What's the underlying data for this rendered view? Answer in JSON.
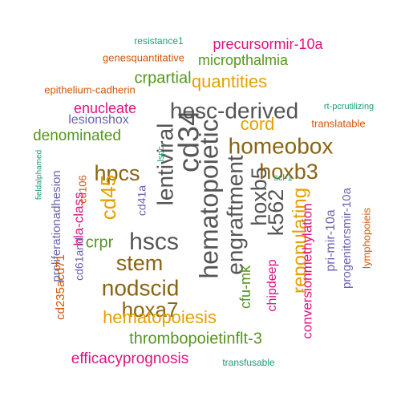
{
  "palette": {
    "gray": "#555555",
    "olive": "#8a6414",
    "orange": "#e6a000",
    "green": "#55961e",
    "pink": "#e0137f",
    "purple": "#6a63b0",
    "rust": "#d0560a",
    "teal": "#1a9e77"
  },
  "words": [
    {
      "id": "hematopoietic",
      "text": "hematopoietic",
      "color": "gray"
    },
    {
      "id": "cd34",
      "text": "cd34",
      "color": "gray"
    },
    {
      "id": "hesc-derived",
      "text": "hesc-derived",
      "color": "gray"
    },
    {
      "id": "lentiviral",
      "text": "lentiviral",
      "color": "gray"
    },
    {
      "id": "engraftment",
      "text": "engraftment",
      "color": "gray"
    },
    {
      "id": "hscs",
      "text": "hscs",
      "color": "gray"
    },
    {
      "id": "hoxb5",
      "text": "hoxb5",
      "color": "gray"
    },
    {
      "id": "k562",
      "text": "k562",
      "color": "gray"
    },
    {
      "id": "homeobox",
      "text": "homeobox",
      "color": "olive"
    },
    {
      "id": "nodscid",
      "text": "nodscid",
      "color": "olive"
    },
    {
      "id": "stem",
      "text": "stem",
      "color": "olive"
    },
    {
      "id": "hoxb3",
      "text": "hoxb3",
      "color": "olive"
    },
    {
      "id": "hpcs",
      "text": "hpcs",
      "color": "olive"
    },
    {
      "id": "hoxa7",
      "text": "hoxa7",
      "color": "olive"
    },
    {
      "id": "hematopoiesis",
      "text": "hematopoiesis",
      "color": "orange"
    },
    {
      "id": "repopulating",
      "text": "repopulating",
      "color": "orange"
    },
    {
      "id": "cd45",
      "text": "cd45",
      "color": "orange"
    },
    {
      "id": "quantities",
      "text": "quantities",
      "color": "orange"
    },
    {
      "id": "cord",
      "text": "cord",
      "color": "orange"
    },
    {
      "id": "thrombopoietinflt-3",
      "text": "thrombopoietinflt-3",
      "color": "green"
    },
    {
      "id": "micropthalmia",
      "text": "micropthalmia",
      "color": "green"
    },
    {
      "id": "crpartial",
      "text": "crpartial",
      "color": "green"
    },
    {
      "id": "denominated",
      "text": "denominated",
      "color": "green"
    },
    {
      "id": "crpr",
      "text": "crpr",
      "color": "green"
    },
    {
      "id": "cfu-mk",
      "text": "cfu-mk",
      "color": "green"
    },
    {
      "id": "efficacyprognosis",
      "text": "efficacyprognosis",
      "color": "pink"
    },
    {
      "id": "enucleate",
      "text": "enucleate",
      "color": "pink"
    },
    {
      "id": "precursormir-10a",
      "text": "precursormir-10a",
      "color": "pink"
    },
    {
      "id": "chipdeep",
      "text": "chipdeep",
      "color": "pink"
    },
    {
      "id": "conversionmethylation",
      "text": "conversionmethylation",
      "color": "pink"
    },
    {
      "id": "hla-class",
      "text": "hla-class",
      "color": "pink"
    },
    {
      "id": "lesionshox",
      "text": "lesionshox",
      "color": "purple"
    },
    {
      "id": "proliferationadhesion",
      "text": "proliferationadhesion",
      "color": "purple"
    },
    {
      "id": "pri-mir-10a",
      "text": "pri-mir-10a",
      "color": "purple"
    },
    {
      "id": "progenitorsmir-10a",
      "text": "progenitorsmir-10a",
      "color": "purple"
    },
    {
      "id": "cd41a",
      "text": "cd41a",
      "color": "purple"
    },
    {
      "id": "cd61and",
      "text": "cd61and",
      "color": "purple"
    },
    {
      "id": "cd235acd71",
      "text": "cd235acd71",
      "color": "rust"
    },
    {
      "id": "cd106",
      "text": "cd106",
      "color": "rust"
    },
    {
      "id": "epithelium-cadherin",
      "text": "epithelium-cadherin",
      "color": "rust"
    },
    {
      "id": "genesquantitative",
      "text": "genesquantitative",
      "color": "rust"
    },
    {
      "id": "translatable",
      "text": "translatable",
      "color": "rust"
    },
    {
      "id": "lymphopoieis",
      "text": "lymphopoieis",
      "color": "rust"
    },
    {
      "id": "resistance1",
      "text": "resistance1",
      "color": "teal"
    },
    {
      "id": "rt-pcrutilizing",
      "text": "rt-pcrutilizing",
      "color": "teal"
    },
    {
      "id": "transfusable",
      "text": "transfusable",
      "color": "teal"
    },
    {
      "id": "fieldalphamed",
      "text": "fieldalphamed",
      "color": "teal"
    },
    {
      "id": "lspc",
      "text": "lspc",
      "color": "teal"
    },
    {
      "id": "scl-1",
      "text": "scl-1",
      "color": "teal"
    }
  ]
}
